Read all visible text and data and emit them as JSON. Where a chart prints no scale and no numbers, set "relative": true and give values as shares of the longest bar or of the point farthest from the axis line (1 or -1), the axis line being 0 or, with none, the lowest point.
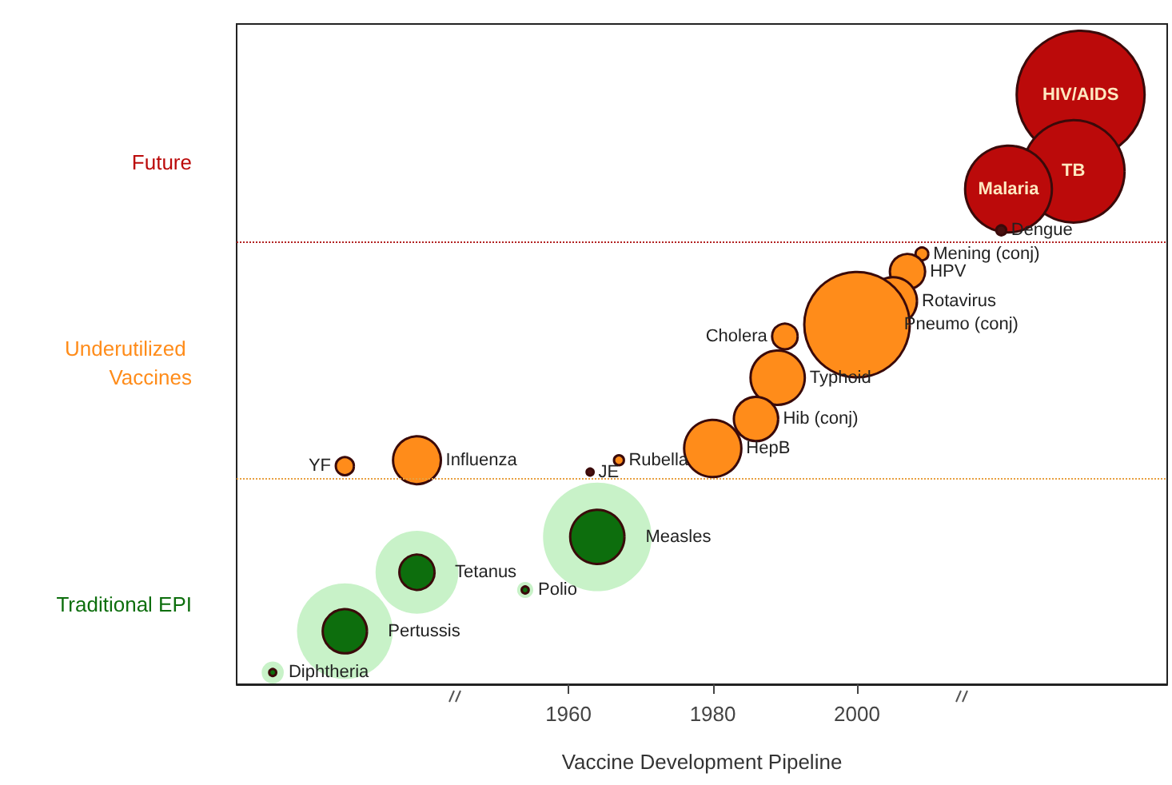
{
  "chart_data": {
    "type": "bubble",
    "relative": true,
    "xlabel": "Vaccine Development Pipeline",
    "xlim": [
      1914,
      2043
    ],
    "xticks": [
      1960,
      1980,
      2000
    ],
    "grid": false,
    "legend": false,
    "marker": "circle",
    "series": [
      {
        "color": "#c8f2c8",
        "x": [
          1964,
          1939,
          1954,
          1929,
          1919
        ],
        "values": [
          0.25,
          0.19,
          0.16,
          0.09,
          0.02
        ],
        "sizes": [
          0.72,
          0.42,
          0.016,
          0.56,
          0.03
        ]
      },
      {
        "name": "Traditional EPI",
        "color": "#0d6e0d",
        "x": [
          1964,
          1939,
          1954,
          1929,
          1919
        ],
        "values": [
          0.25,
          0.19,
          0.16,
          0.09,
          0.02
        ],
        "sizes": [
          0.18,
          0.076,
          0.003,
          0.12,
          0.003
        ]
      },
      {
        "name": "Underutilized Vaccines",
        "color": "#ff8c1a",
        "x": [
          2009,
          2007,
          2005,
          2000,
          1990,
          1989,
          1986,
          1980,
          1967,
          1963,
          1939,
          1929
        ],
        "values": [
          0.73,
          0.7,
          0.65,
          0.61,
          0.59,
          0.52,
          0.45,
          0.4,
          0.38,
          0.36,
          0.38,
          0.37
        ],
        "sizes": [
          0.01,
          0.076,
          0.14,
          0.68,
          0.04,
          0.18,
          0.12,
          0.2,
          0.006,
          0.003,
          0.14,
          0.02
        ],
        "colors": [
          "#ff8c1a",
          "#ff8c1a",
          "#ff8c1a",
          "#ff8c1a",
          "#ff8c1a",
          "#ff8c1a",
          "#ff8c1a",
          "#ff8c1a",
          "#ff8c1a",
          "#4a1010",
          "#ff8c1a",
          "#ff8c1a"
        ]
      },
      {
        "name": "Future",
        "color": "#bb0a0a",
        "x": [
          2031,
          2030,
          2021,
          2020
        ],
        "values": [
          1.0,
          0.87,
          0.84,
          0.77
        ],
        "sizes": [
          1,
          0.64,
          0.46,
          0.006
        ],
        "colors": [
          "#bb0a0a",
          "#bb0a0a",
          "#bb0a0a",
          "#4a1010"
        ]
      }
    ],
    "ref_lines": [
      {
        "axis": "y",
        "value": 0.75,
        "color": "#b22222",
        "line_style": "dotted"
      },
      {
        "axis": "y",
        "value": 0.35,
        "color": "#e8a040",
        "line_style": "dotted"
      }
    ],
    "annotations": [
      {
        "text": "HIV/AIDS",
        "x": 2031,
        "y": 1.0
      },
      {
        "text": "TB",
        "x": 2030,
        "y": 0.87
      },
      {
        "text": "Malaria",
        "x": 2021,
        "y": 0.84
      },
      {
        "text": "Dengue",
        "x": 2020,
        "y": 0.77
      },
      {
        "text": "Mening (conj)",
        "x": 2009,
        "y": 0.73
      },
      {
        "text": "HPV",
        "x": 2007,
        "y": 0.7
      },
      {
        "text": "Rotavirus",
        "x": 2005,
        "y": 0.65
      },
      {
        "text": "Pneumo (conj)",
        "x": 2000,
        "y": 0.61
      },
      {
        "text": "Cholera",
        "x": 1990,
        "y": 0.59
      },
      {
        "text": "Typhoid",
        "x": 1989,
        "y": 0.52
      },
      {
        "text": "Hib (conj)",
        "x": 1986,
        "y": 0.45
      },
      {
        "text": "HepB",
        "x": 1980,
        "y": 0.4
      },
      {
        "text": "Rubella",
        "x": 1967,
        "y": 0.38
      },
      {
        "text": "JE",
        "x": 1963,
        "y": 0.36
      },
      {
        "text": "Influenza",
        "x": 1939,
        "y": 0.38
      },
      {
        "text": "YF",
        "x": 1929,
        "y": 0.37
      },
      {
        "text": "Measles",
        "x": 1964,
        "y": 0.25
      },
      {
        "text": "Tetanus",
        "x": 1939,
        "y": 0.19
      },
      {
        "text": "Polio",
        "x": 1954,
        "y": 0.16
      },
      {
        "text": "Pertussis",
        "x": 1929,
        "y": 0.09
      },
      {
        "text": "Diphtheria",
        "x": 1919,
        "y": 0.02
      }
    ]
  }
}
